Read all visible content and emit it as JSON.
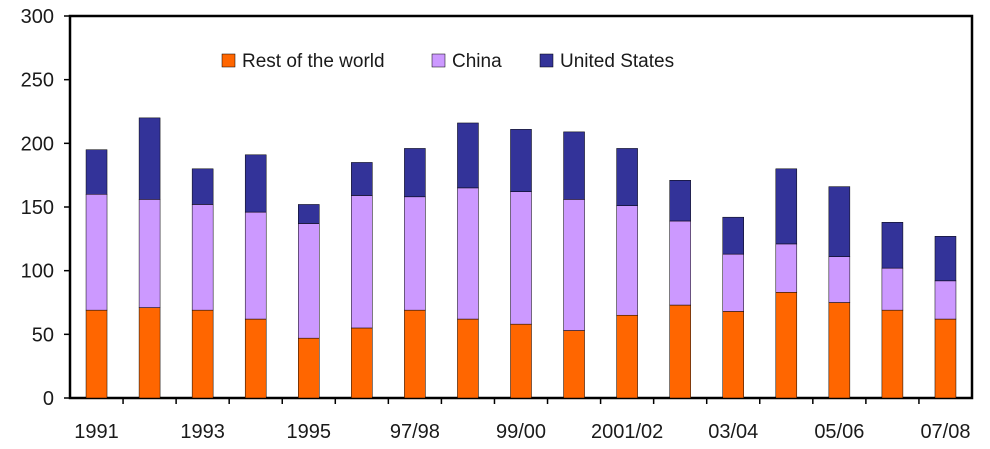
{
  "chart_data": {
    "type": "bar",
    "stacked": true,
    "title": "",
    "xlabel": "",
    "ylabel": "",
    "ylim": [
      0,
      300
    ],
    "yticks": [
      0,
      50,
      100,
      150,
      200,
      250,
      300
    ],
    "grid": false,
    "legend_position": "top-center",
    "categories": [
      "1991",
      "",
      "1993",
      "",
      "1995",
      "",
      "97/98",
      "",
      "99/00",
      "",
      "2001/02",
      "",
      "03/04",
      "",
      "05/06",
      "",
      "07/08"
    ],
    "series": [
      {
        "name": "Rest of the world",
        "color": "#ff6600",
        "values": [
          69,
          71,
          69,
          62,
          47,
          55,
          69,
          62,
          58,
          53,
          65,
          73,
          68,
          83,
          75,
          69,
          62
        ]
      },
      {
        "name": "China",
        "color": "#cc99ff",
        "values": [
          91,
          85,
          83,
          84,
          90,
          104,
          89,
          103,
          104,
          103,
          86,
          66,
          45,
          38,
          36,
          33,
          30
        ]
      },
      {
        "name": "United States",
        "color": "#333399",
        "values": [
          35,
          64,
          28,
          45,
          15,
          26,
          38,
          51,
          49,
          53,
          45,
          32,
          29,
          59,
          55,
          36,
          35
        ]
      }
    ]
  }
}
